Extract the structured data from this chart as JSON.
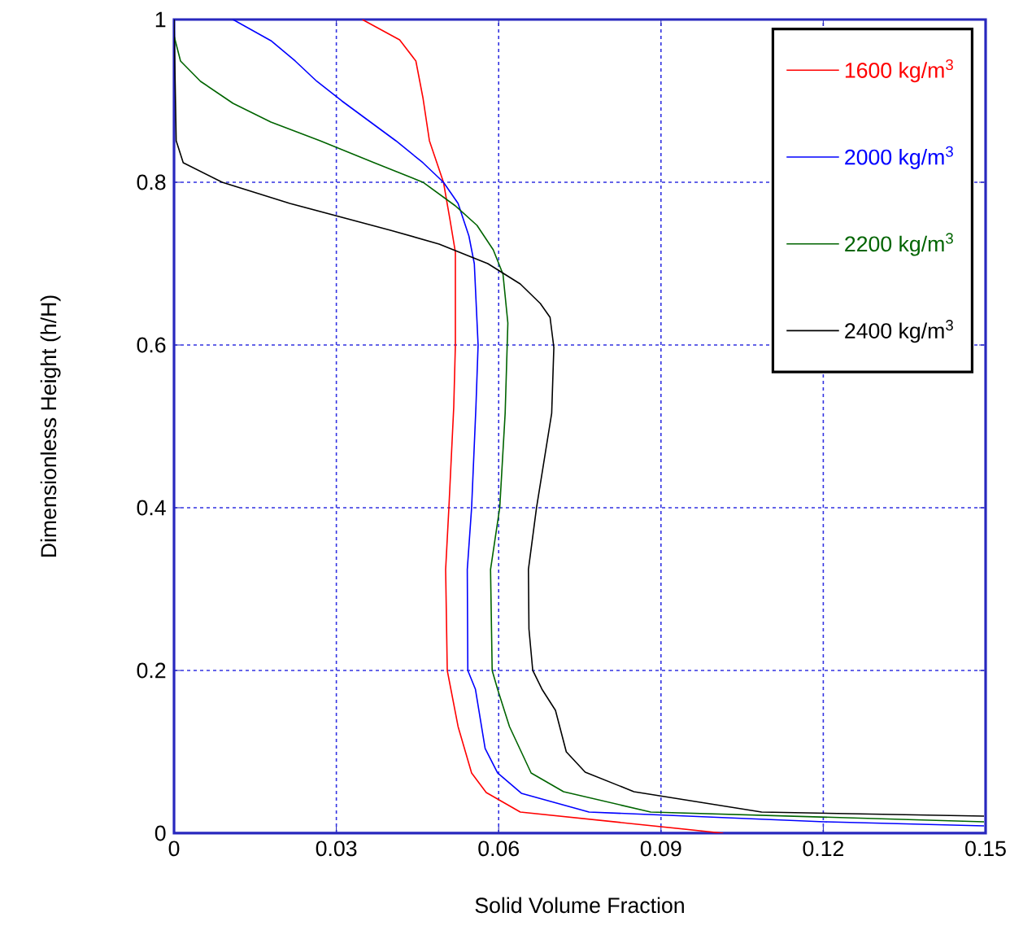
{
  "chart_data": {
    "type": "line",
    "xlabel": "Solid Volume Fraction",
    "ylabel": "Dimensionless Height (h/H)",
    "xlim": [
      0,
      0.15
    ],
    "ylim": [
      0,
      1
    ],
    "xticks": [
      0,
      0.03,
      0.06,
      0.09,
      0.12,
      0.15
    ],
    "yticks": [
      0,
      0.2,
      0.4,
      0.6,
      0.8,
      1
    ],
    "grid": true,
    "legend": "top right",
    "line_style": "solid",
    "series": [
      {
        "name": "1600 kg/m$^{3}$",
        "color": "#ff0000",
        "x": [
          0.0348,
          0.0417,
          0.0447,
          0.046,
          0.0472,
          0.0498,
          0.051,
          0.052,
          0.052,
          0.0517,
          0.0508,
          0.0502,
          0.0505,
          0.0525,
          0.055,
          0.0577,
          0.064,
          0.1015
        ],
        "values": [
          1.0,
          0.975,
          0.949,
          0.904,
          0.851,
          0.8,
          0.754,
          0.714,
          0.6,
          0.524,
          0.4,
          0.324,
          0.2,
          0.131,
          0.074,
          0.05,
          0.026,
          0.0
        ]
      },
      {
        "name": "2000 kg/m$^{3}$",
        "color": "#0000ff",
        "x": [
          0.0109,
          0.0179,
          0.0224,
          0.0264,
          0.031,
          0.041,
          0.046,
          0.0498,
          0.0525,
          0.0545,
          0.0555,
          0.0562,
          0.0558,
          0.055,
          0.0542,
          0.0543,
          0.0557,
          0.0575,
          0.0598,
          0.0642,
          0.0767,
          0.1202,
          0.1497
        ],
        "values": [
          1.0,
          0.974,
          0.949,
          0.924,
          0.9,
          0.851,
          0.824,
          0.8,
          0.774,
          0.734,
          0.7,
          0.6,
          0.524,
          0.4,
          0.324,
          0.2,
          0.177,
          0.104,
          0.074,
          0.049,
          0.026,
          0.014,
          0.009
        ]
      },
      {
        "name": "2200 kg/m$^{3}$",
        "color": "#006400",
        "x": [
          0.0,
          0.0012,
          0.0049,
          0.0109,
          0.0179,
          0.027,
          0.037,
          0.046,
          0.052,
          0.056,
          0.059,
          0.0608,
          0.0617,
          0.0612,
          0.0602,
          0.0585,
          0.0588,
          0.0598,
          0.062,
          0.066,
          0.072,
          0.0881,
          0.1497
        ],
        "values": [
          0.98,
          0.949,
          0.924,
          0.897,
          0.874,
          0.851,
          0.824,
          0.8,
          0.771,
          0.747,
          0.717,
          0.687,
          0.627,
          0.516,
          0.4,
          0.324,
          0.2,
          0.177,
          0.131,
          0.074,
          0.051,
          0.026,
          0.014
        ]
      },
      {
        "name": "2400 kg/m$^{3}$",
        "color": "#000000",
        "x": [
          0.0,
          0.0004,
          0.0017,
          0.0089,
          0.0214,
          0.04,
          0.049,
          0.058,
          0.064,
          0.0677,
          0.0695,
          0.0702,
          0.0698,
          0.067,
          0.0655,
          0.0656,
          0.0663,
          0.068,
          0.0705,
          0.0725,
          0.076,
          0.085,
          0.1086,
          0.1497
        ],
        "values": [
          1.0,
          0.851,
          0.824,
          0.8,
          0.774,
          0.741,
          0.724,
          0.7,
          0.675,
          0.651,
          0.634,
          0.597,
          0.516,
          0.4,
          0.324,
          0.251,
          0.2,
          0.177,
          0.151,
          0.1,
          0.075,
          0.051,
          0.026,
          0.021
        ]
      }
    ]
  }
}
